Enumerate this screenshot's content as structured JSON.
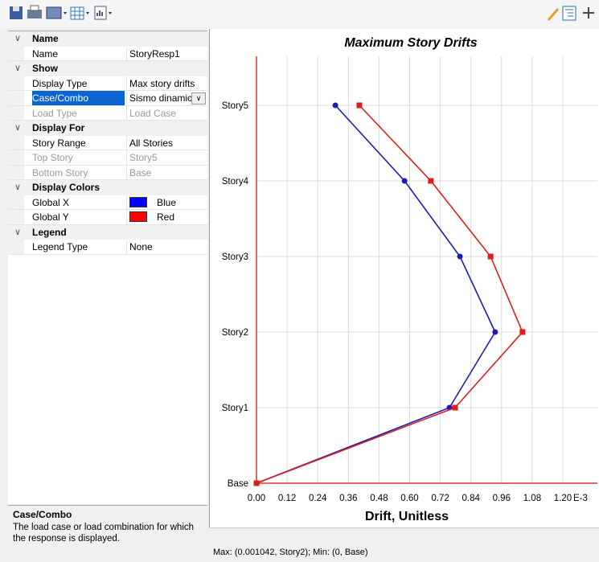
{
  "property_grid": {
    "sections": [
      {
        "title": "Name",
        "rows": [
          {
            "label": "Name",
            "value": "StoryResp1"
          }
        ]
      },
      {
        "title": "Show",
        "rows": [
          {
            "label": "Display Type",
            "value": "Max story drifts"
          },
          {
            "label": "Case/Combo",
            "value": "Sismo dinamic",
            "selected": true
          },
          {
            "label": "Load Type",
            "value": "Load Case",
            "disabled": true
          }
        ]
      },
      {
        "title": "Display For",
        "rows": [
          {
            "label": "Story Range",
            "value": "All Stories"
          },
          {
            "label": "Top Story",
            "value": "Story5",
            "disabled": true
          },
          {
            "label": "Bottom Story",
            "value": "Base",
            "disabled": true
          }
        ]
      },
      {
        "title": "Display Colors",
        "rows": [
          {
            "label": "Global X",
            "value": "Blue",
            "swatch": "#0000ff"
          },
          {
            "label": "Global Y",
            "value": "Red",
            "swatch": "#ff0000"
          }
        ]
      },
      {
        "title": "Legend",
        "rows": [
          {
            "label": "Legend Type",
            "value": "None"
          }
        ]
      }
    ]
  },
  "description": {
    "title": "Case/Combo",
    "text": "The load case or load combination for which the response is displayed."
  },
  "chart_data": {
    "type": "line",
    "title": "Maximum Story Drifts",
    "x_label": "Drift, Unitless",
    "x_multiplier": "E-3",
    "categories": [
      "Base",
      "Story1",
      "Story2",
      "Story3",
      "Story4",
      "Story5"
    ],
    "series": [
      {
        "color": "#1c1cb4",
        "marker": "circle",
        "values": [
          0,
          0.756,
          0.935,
          0.797,
          0.58,
          0.309
        ]
      },
      {
        "color": "#e01c1c",
        "marker": "square",
        "values": [
          0,
          0.778,
          1.042,
          0.917,
          0.683,
          0.403
        ]
      }
    ],
    "xlim": [
      0,
      1.2
    ],
    "xticks": [
      {
        "value": 0,
        "label": "0.00"
      },
      {
        "value": 0.12,
        "label": "0.12"
      },
      {
        "value": 0.24,
        "label": "0.24"
      },
      {
        "value": 0.36,
        "label": "0.36"
      },
      {
        "value": 0.48,
        "label": "0.48"
      },
      {
        "value": 0.6,
        "label": "0.60"
      },
      {
        "value": 0.72,
        "label": "0.72"
      },
      {
        "value": 0.84,
        "label": "0.84"
      },
      {
        "value": 0.96,
        "label": "0.96"
      },
      {
        "value": 1.08,
        "label": "1.08"
      },
      {
        "value": 1.2,
        "label": "1.20"
      }
    ],
    "grid": true,
    "axis_color": "#e03030"
  },
  "status": "Max: (0.001042, Story2);  Min: (0, Base)"
}
